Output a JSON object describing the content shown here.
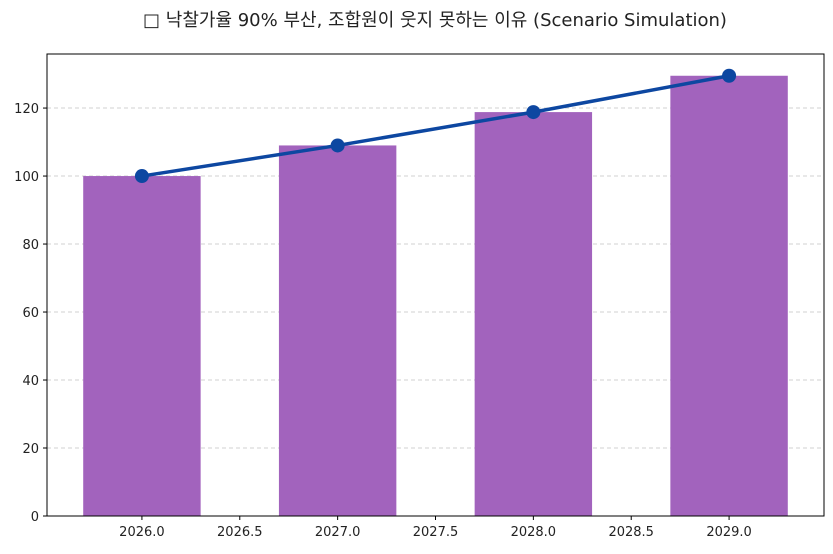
{
  "chart_data": {
    "type": "bar+line",
    "title": "□ 낙찰가율 90% 부산, 조합원이 웃지 못하는 이유 (Scenario Simulation)",
    "xlabel": "",
    "ylabel": "",
    "x": [
      2026,
      2027,
      2028,
      2029
    ],
    "bar_values": [
      100,
      109,
      118.81,
      129.5
    ],
    "line_values": [
      100,
      109,
      118.81,
      129.5
    ],
    "bar_width": 0.6,
    "xlim": [
      2025.515,
      2029.485
    ],
    "ylim": [
      0,
      135.9
    ],
    "xticks": [
      "2026.0",
      "2026.5",
      "2027.0",
      "2027.5",
      "2028.0",
      "2028.5",
      "2029.0"
    ],
    "xtick_values": [
      2026,
      2026.5,
      2027,
      2027.5,
      2028,
      2028.5,
      2029
    ],
    "yticks": [
      "0",
      "20",
      "40",
      "60",
      "80",
      "100",
      "120"
    ],
    "ytick_values": [
      0,
      20,
      40,
      60,
      80,
      100,
      120
    ],
    "grid": "y-dashed",
    "bar_color": "#a263bd",
    "line_color": "#0d47a1",
    "legend": "none"
  }
}
